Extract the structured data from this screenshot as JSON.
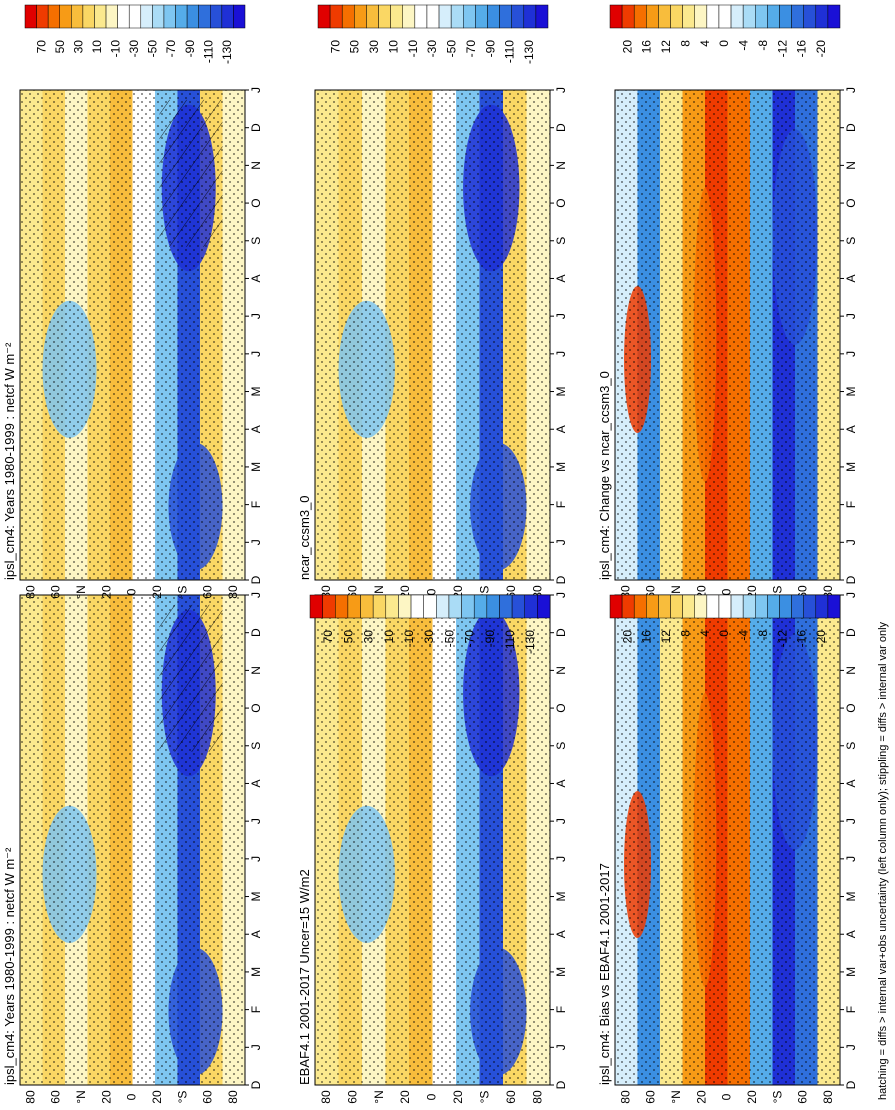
{
  "footer_note": "hatching = diffs > internal var+obs uncertainty (left column only); stippling = diffs > internal var only",
  "panels": [
    {
      "id": "top-left",
      "title": "ipsl_cm4: Years 1980-1999 : netcf W m⁻²",
      "scale": "main"
    },
    {
      "id": "top-right",
      "title": "ipsl_cm4: Years 1980-1999 : netcf W m⁻²",
      "scale": "main"
    },
    {
      "id": "mid-left",
      "title": "EBAF4.1 2001-2017 Uncer=15 W/m2",
      "scale": "main"
    },
    {
      "id": "mid-right",
      "title": "ncar_ccsm3_0",
      "scale": "main"
    },
    {
      "id": "bot-left",
      "title": "ipsl_cm4: Bias vs EBAF4.1 2001-2017",
      "scale": "diff"
    },
    {
      "id": "bot-right",
      "title": "ipsl_cm4: Change vs ncar_ccsm3_0",
      "scale": "diff"
    }
  ],
  "month_labels": [
    "D",
    "J",
    "F",
    "M",
    "A",
    "M",
    "J",
    "J",
    "A",
    "S",
    "O",
    "N",
    "D",
    "J"
  ],
  "lat_labels": [
    "80",
    "60",
    "°N",
    "20",
    "0",
    "20",
    "°S",
    "60",
    "80"
  ],
  "colorbars": {
    "main": {
      "labels": [
        "70",
        "50",
        "30",
        "10",
        "-10",
        "-30",
        "-50",
        "-70",
        "-90",
        "-110",
        "-130"
      ],
      "colors": [
        "#e00000",
        "#ef3b00",
        "#f56f00",
        "#f79b16",
        "#f8bd3c",
        "#fad764",
        "#fbe98e",
        "#fdf6c4",
        "#ffffff",
        "#ffffff",
        "#d6eefb",
        "#aadcf6",
        "#7ec6f1",
        "#55ace9",
        "#3b8fe2",
        "#2f6fdc",
        "#2750d8",
        "#1f30d6",
        "#1a10d6"
      ]
    },
    "diff": {
      "labels": [
        "20",
        "16",
        "12",
        "8",
        "4",
        "0",
        "-4",
        "-8",
        "-12",
        "-16",
        "-20"
      ],
      "colors": [
        "#e00000",
        "#ef3b00",
        "#f56f00",
        "#f79b16",
        "#f8bd3c",
        "#fad764",
        "#fbe98e",
        "#fdf6c4",
        "#ffffff",
        "#ffffff",
        "#d6eefb",
        "#aadcf6",
        "#7ec6f1",
        "#55ace9",
        "#3b8fe2",
        "#2f6fdc",
        "#2750d8",
        "#1f30d6",
        "#1a10d6"
      ]
    }
  },
  "chart_data": [
    {
      "type": "heatmap",
      "title": "ipsl_cm4: Years 1980-1999 : netcf W m⁻²",
      "x_axis": "latitude",
      "y_axis": "month",
      "colorbar_range": [
        -130,
        70
      ]
    },
    {
      "type": "heatmap",
      "title": "ipsl_cm4: Years 1980-1999 : netcf W m⁻²",
      "x_axis": "latitude",
      "y_axis": "month",
      "colorbar_range": [
        -130,
        70
      ]
    },
    {
      "type": "heatmap",
      "title": "EBAF4.1 2001-2017 Uncer=15 W/m2",
      "x_axis": "latitude",
      "y_axis": "month",
      "colorbar_range": [
        -130,
        70
      ]
    },
    {
      "type": "heatmap",
      "title": "ncar_ccsm3_0",
      "x_axis": "latitude",
      "y_axis": "month",
      "colorbar_range": [
        -130,
        70
      ]
    },
    {
      "type": "heatmap",
      "title": "ipsl_cm4: Bias vs EBAF4.1 2001-2017",
      "x_axis": "latitude",
      "y_axis": "month",
      "colorbar_range": [
        -20,
        20
      ]
    },
    {
      "type": "heatmap",
      "title": "ipsl_cm4: Change vs ncar_ccsm3_0",
      "x_axis": "latitude",
      "y_axis": "month",
      "colorbar_range": [
        -20,
        20
      ]
    }
  ]
}
